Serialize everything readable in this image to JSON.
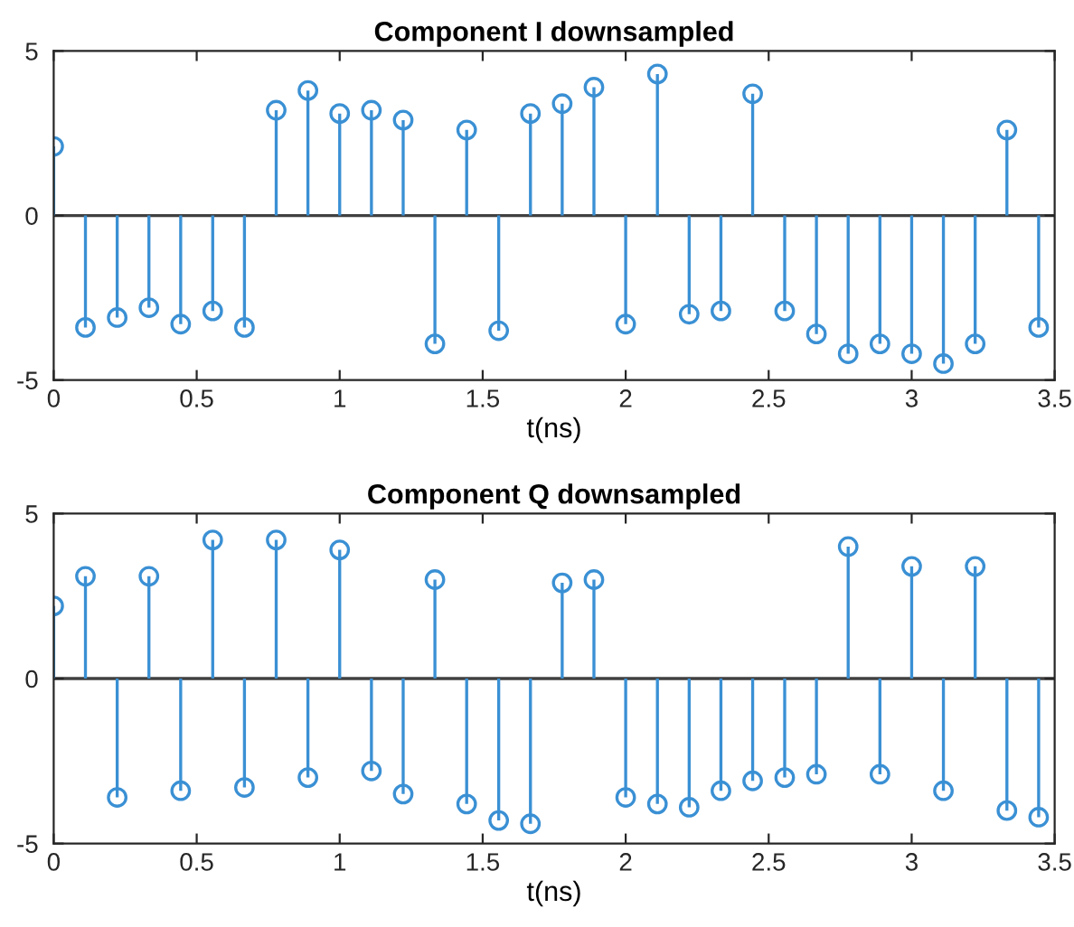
{
  "chart_data": [
    {
      "type": "lollipop",
      "title": "Component I downsampled",
      "xlabel": "t(ns)",
      "x": [
        0,
        0.111,
        0.222,
        0.333,
        0.444,
        0.556,
        0.667,
        0.778,
        0.889,
        1.0,
        1.111,
        1.222,
        1.333,
        1.444,
        1.556,
        1.667,
        1.778,
        1.889,
        2.0,
        2.111,
        2.222,
        2.333,
        2.444,
        2.556,
        2.667,
        2.778,
        2.889,
        3.0,
        3.111,
        3.222,
        3.333,
        3.444
      ],
      "series": [
        {
          "color": "#3a90d4",
          "values": [
            2.1,
            -3.4,
            -3.1,
            -2.8,
            -3.3,
            -2.9,
            -3.4,
            3.2,
            3.8,
            3.1,
            3.2,
            2.9,
            -3.9,
            2.6,
            -3.5,
            3.1,
            3.4,
            3.9,
            -3.3,
            4.3,
            -3.0,
            -2.9,
            3.7,
            -2.9,
            -3.6,
            -4.2,
            -3.9,
            -4.2,
            -4.5,
            -3.9,
            2.6,
            -3.4
          ]
        }
      ],
      "marker": "circle",
      "xlim": [
        0,
        3.5
      ],
      "xticks": [
        0,
        0.5,
        1,
        1.5,
        2,
        2.5,
        3,
        3.5
      ],
      "ylim": [
        -5,
        5
      ],
      "yticks": [
        -5,
        0,
        5
      ]
    },
    {
      "type": "lollipop",
      "title": "Component Q downsampled",
      "xlabel": "t(ns)",
      "x": [
        0,
        0.111,
        0.222,
        0.333,
        0.444,
        0.556,
        0.667,
        0.778,
        0.889,
        1.0,
        1.111,
        1.222,
        1.333,
        1.444,
        1.556,
        1.667,
        1.778,
        1.889,
        2.0,
        2.111,
        2.222,
        2.333,
        2.444,
        2.556,
        2.667,
        2.778,
        2.889,
        3.0,
        3.111,
        3.222,
        3.333,
        3.444
      ],
      "series": [
        {
          "color": "#3a90d4",
          "values": [
            2.2,
            3.1,
            -3.6,
            3.1,
            -3.4,
            4.2,
            -3.3,
            4.2,
            -3.0,
            3.9,
            -2.8,
            -3.5,
            3.0,
            -3.8,
            -4.3,
            -4.4,
            2.9,
            3.0,
            -3.6,
            -3.8,
            -3.9,
            -3.4,
            -3.1,
            -3.0,
            -2.9,
            4.0,
            -2.9,
            3.4,
            -3.4,
            3.4,
            -4.0,
            -4.2
          ]
        }
      ],
      "marker": "circle",
      "xlim": [
        0,
        3.5
      ],
      "xticks": [
        0,
        0.5,
        1,
        1.5,
        2,
        2.5,
        3,
        3.5
      ],
      "ylim": [
        -5,
        5
      ],
      "yticks": [
        -5,
        0,
        5
      ]
    }
  ]
}
